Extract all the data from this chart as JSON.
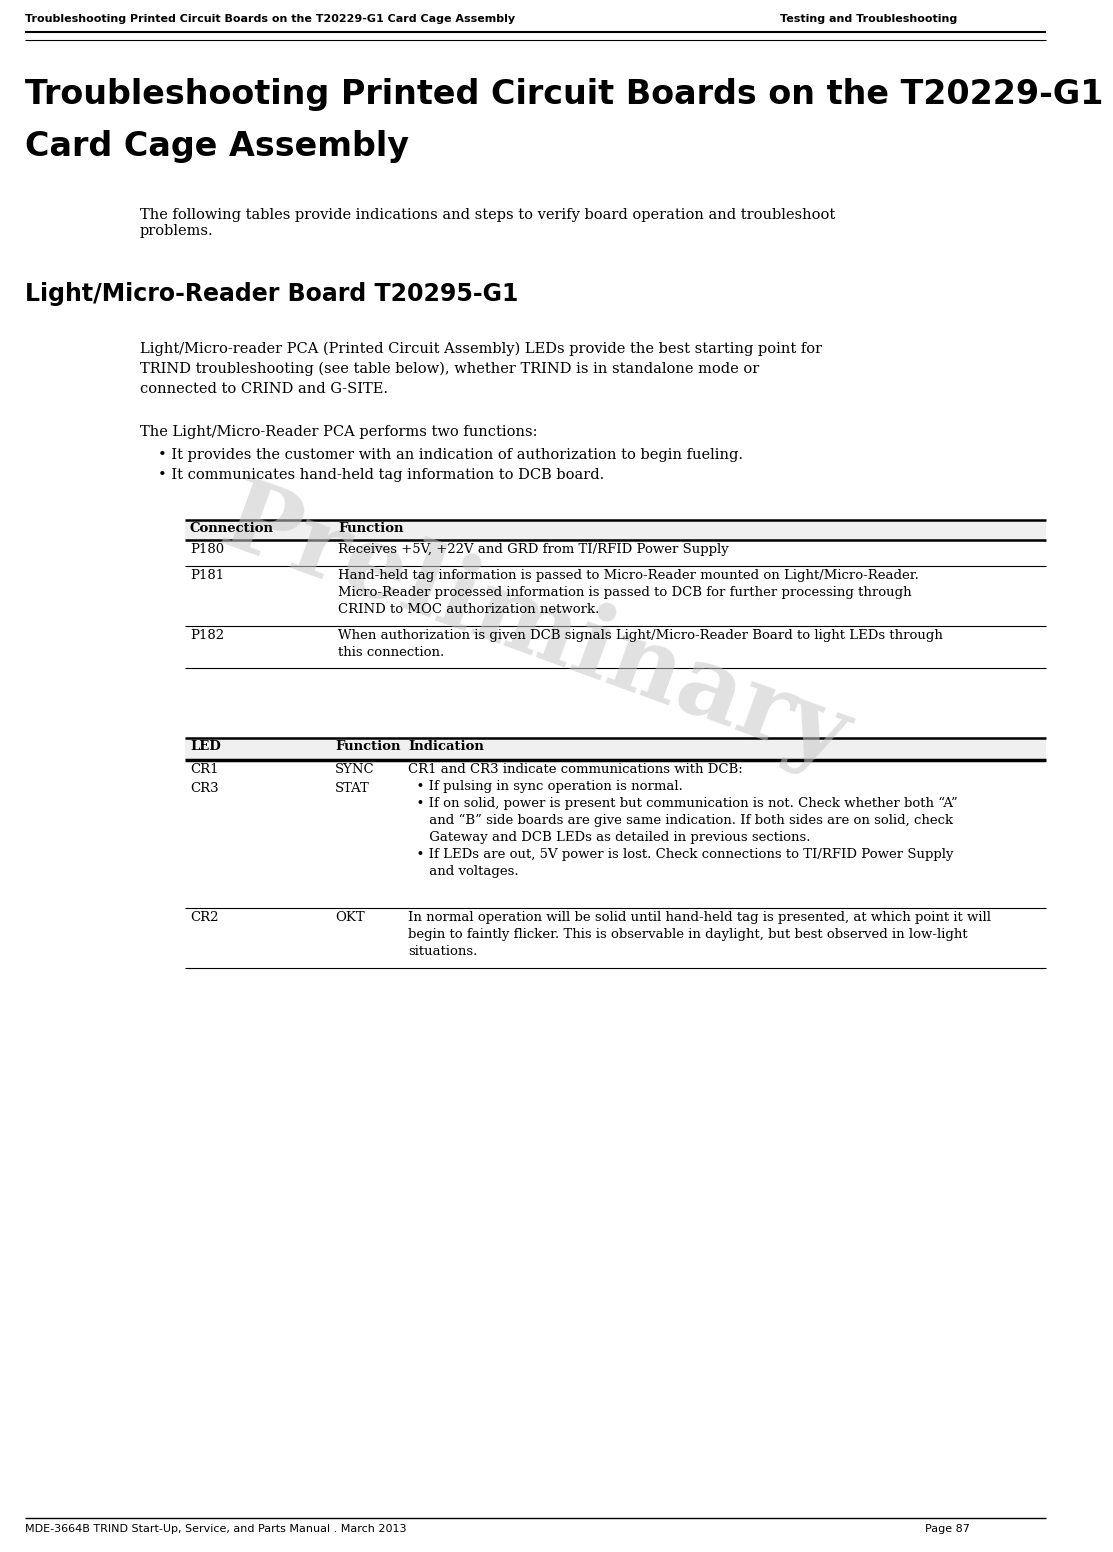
{
  "header_left": "Troubleshooting Printed Circuit Boards on the T20229-G1 Card Cage Assembly",
  "header_right": "Testing and Troubleshooting",
  "footer_left": "MDE-3664B TRIND Start-Up, Service, and Parts Manual . March 2013",
  "footer_right": "Page 87",
  "main_title_line1": "Troubleshooting Printed Circuit Boards on the T20229-G1",
  "main_title_line2": "Card Cage Assembly",
  "intro_text": "The following tables provide indications and steps to verify board operation and troubleshoot\nproblems.",
  "section_title": "Light/Micro-Reader Board T20295-G1",
  "section_intro_line1": "Light/Micro-reader PCA (Printed Circuit Assembly) LEDs provide the best starting point for",
  "section_intro_line2": "TRIND troubleshooting (see table below), whether TRIND is in standalone mode or",
  "section_intro_line3": "connected to CRIND and G-SITE.",
  "functions_title": "The Light/Micro-Reader PCA performs two functions:",
  "bullet1": "It provides the customer with an indication of authorization to begin fueling.",
  "bullet2": "It communicates hand-held tag information to DCB board.",
  "table1_col1_header": "Connection",
  "table1_col2_header": "Function",
  "table1_row1_c1": "P180",
  "table1_row1_c2": "Receives +5V, +22V and GRD from TI/RFID Power Supply",
  "table1_row2_c1": "P181",
  "table1_row2_c2_line1": "Hand-held tag information is passed to Micro-Reader mounted on Light/Micro-Reader.",
  "table1_row2_c2_line2": "Micro-Reader processed information is passed to DCB for further processing through",
  "table1_row2_c2_line3": "CRIND to MOC authorization network.",
  "table1_row3_c1": "P182",
  "table1_row3_c2_line1": "When authorization is given DCB signals Light/Micro-Reader Board to light LEDs through",
  "table1_row3_c2_line2": "this connection.",
  "table2_col1_header": "LED",
  "table2_col2_header": "Function",
  "table2_col3_header": "Indication",
  "table2_row1_c1_line1": "CR1",
  "table2_row1_c1_line2": "CR3",
  "table2_row1_c2_line1": "SYNC",
  "table2_row1_c2_line2": "STAT",
  "table2_row1_c3_line1": "CR1 and CR3 indicate communications with DCB:",
  "table2_row1_c3_line2": "  • If pulsing in sync operation is normal.",
  "table2_row1_c3_line3": "  • If on solid, power is present but communication is not. Check whether both “A”",
  "table2_row1_c3_line4": "     and “B” side boards are give same indication. If both sides are on solid, check",
  "table2_row1_c3_line5": "     Gateway and DCB LEDs as detailed in previous sections.",
  "table2_row1_c3_line6": "  • If LEDs are out, 5V power is lost. Check connections to TI/RFID Power Supply",
  "table2_row1_c3_line7": "     and voltages.",
  "table2_row2_c1": "CR2",
  "table2_row2_c2": "OKT",
  "table2_row2_c3_line1": "In normal operation will be solid until hand-held tag is presented, at which point it will",
  "table2_row2_c3_line2": "begin to faintly flicker. This is observable in daylight, but best observed in low-light",
  "table2_row2_c3_line3": "situations.",
  "watermark": "Preliminary",
  "bg_color": "#ffffff"
}
